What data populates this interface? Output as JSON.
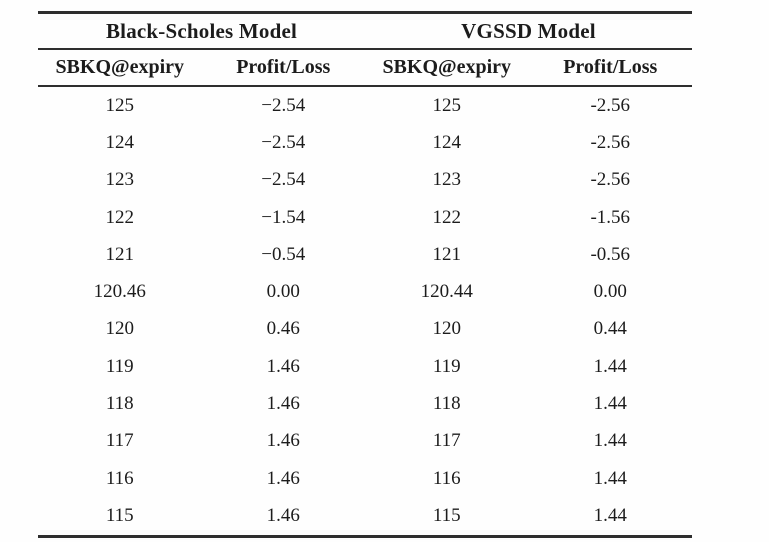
{
  "table": {
    "groups": [
      {
        "label": "Black-Scholes Model"
      },
      {
        "label": "VGSSD Model"
      }
    ],
    "columns": [
      {
        "label": "SBKQ@expiry"
      },
      {
        "label": "Profit/Loss"
      },
      {
        "label": "SBKQ@expiry"
      },
      {
        "label": "Profit/Loss"
      }
    ],
    "rows": [
      [
        "125",
        "−2.54",
        "125",
        "-2.56"
      ],
      [
        "124",
        "−2.54",
        "124",
        "-2.56"
      ],
      [
        "123",
        "−2.54",
        "123",
        "-2.56"
      ],
      [
        "122",
        "−1.54",
        "122",
        "-1.56"
      ],
      [
        "121",
        "−0.54",
        "121",
        "-0.56"
      ],
      [
        "120.46",
        "0.00",
        "120.44",
        "0.00"
      ],
      [
        "120",
        "0.46",
        "120",
        "0.44"
      ],
      [
        "119",
        "1.46",
        "119",
        "1.44"
      ],
      [
        "118",
        "1.46",
        "118",
        "1.44"
      ],
      [
        "117",
        "1.46",
        "117",
        "1.44"
      ],
      [
        "116",
        "1.46",
        "116",
        "1.44"
      ],
      [
        "115",
        "1.46",
        "115",
        "1.44"
      ]
    ],
    "colors": {
      "rule": "#2e2e2e",
      "text": "#1c1c1c",
      "background": "#fefefe"
    }
  }
}
